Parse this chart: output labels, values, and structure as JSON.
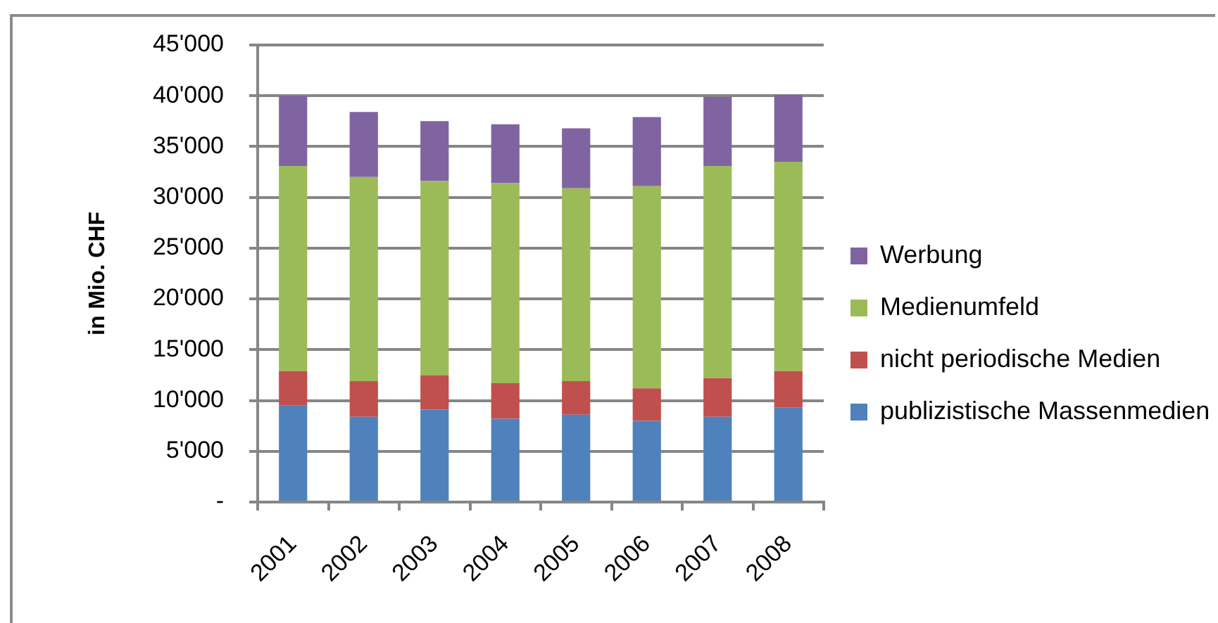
{
  "chart_data": {
    "type": "bar",
    "stacked": true,
    "ylabel": "in Mio. CHF",
    "categories": [
      "2001",
      "2002",
      "2003",
      "2004",
      "2005",
      "2006",
      "2007",
      "2008"
    ],
    "series": [
      {
        "name": "publizistische Massenmedien",
        "color": "#4f81bd",
        "values": [
          9500,
          8400,
          9100,
          8200,
          8600,
          8000,
          8400,
          9300
        ]
      },
      {
        "name": "nicht periodische Medien",
        "color": "#c0504d",
        "values": [
          3400,
          3500,
          3400,
          3500,
          3300,
          3200,
          3800,
          3600
        ]
      },
      {
        "name": "Medienumfeld",
        "color": "#9bbb59",
        "values": [
          20200,
          20100,
          19100,
          19700,
          19000,
          19900,
          20900,
          20600
        ]
      },
      {
        "name": "Werbung",
        "color": "#8064a2",
        "values": [
          6900,
          6400,
          5900,
          5800,
          5900,
          6800,
          6800,
          6600
        ]
      }
    ],
    "ylim": [
      0,
      45000
    ],
    "yticks": [
      {
        "value": 0,
        "label": "-"
      },
      {
        "value": 5000,
        "label": "5'000"
      },
      {
        "value": 10000,
        "label": "10'000"
      },
      {
        "value": 15000,
        "label": "15'000"
      },
      {
        "value": 20000,
        "label": "20'000"
      },
      {
        "value": 25000,
        "label": "25'000"
      },
      {
        "value": 30000,
        "label": "30'000"
      },
      {
        "value": 35000,
        "label": "35'000"
      },
      {
        "value": 40000,
        "label": "40'000"
      },
      {
        "value": 45000,
        "label": "45'000"
      }
    ],
    "grid": "y",
    "legend": "right"
  }
}
